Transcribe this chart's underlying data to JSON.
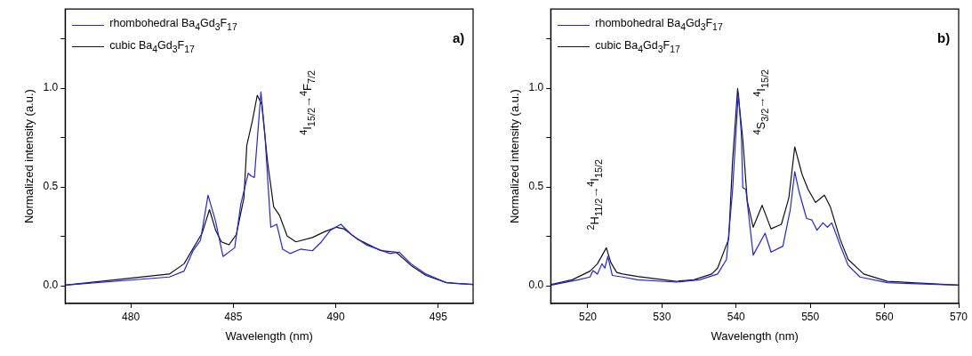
{
  "chart_data": [
    {
      "type": "line",
      "xlabel": "Wavelength (nm)",
      "ylabel": "Normalized intensity (a.u.)",
      "legend": "top left",
      "marker": "none",
      "grid": false,
      "xlim": [
        476.8,
        496.7
      ],
      "xticks": [
        480,
        485,
        490,
        495
      ],
      "ylim": [
        -0.09,
        1.4
      ],
      "yticks": [
        {
          "value": 0,
          "label": "0.0"
        },
        {
          "value": 0.25,
          "label": null
        },
        {
          "value": 0.5,
          "label": "0.5"
        },
        {
          "value": 0.75,
          "label": null
        },
        {
          "value": 1,
          "label": "1.0"
        },
        {
          "value": 1.25,
          "label": null
        }
      ],
      "annotations": [
        "a)",
        "$^{4}$I$_{15/2}$→$^{4}$F$_{7/2}$"
      ],
      "series": [
        {
          "name": "rhombohedral Ba$_{4}$Gd$_{3}$F$_{17}$",
          "color": "#2222ee",
          "x": [
            476.8,
            481.88,
            482.6,
            483.04,
            483.4,
            483.77,
            484.14,
            484.5,
            485.07,
            485.37,
            485.73,
            485.88,
            486.03,
            486.35,
            486.54,
            486.83,
            487.12,
            487.41,
            487.77,
            488.28,
            488.86,
            489.3,
            489.74,
            490.25,
            490.76,
            491.48,
            492.65,
            493.09,
            493.67,
            494.4,
            495.41,
            496.7
          ],
          "values": [
            0.003,
            0.044,
            0.074,
            0.177,
            0.229,
            0.458,
            0.325,
            0.148,
            0.192,
            0.414,
            0.569,
            0.555,
            0.547,
            0.98,
            0.769,
            0.296,
            0.311,
            0.185,
            0.163,
            0.185,
            0.177,
            0.222,
            0.281,
            0.311,
            0.259,
            0.207,
            0.163,
            0.17,
            0.111,
            0.059,
            0.015,
            0.006
          ]
        },
        {
          "name": "cubic Ba$_{4}$Gd$_{3}$F$_{17}$",
          "color": "#111111",
          "x": [
            476.8,
            481.88,
            482.6,
            483.48,
            483.84,
            484.14,
            484.42,
            484.79,
            485.15,
            485.52,
            485.66,
            485.95,
            486.17,
            486.39,
            486.68,
            486.97,
            487.26,
            487.63,
            488.06,
            488.86,
            489.45,
            490.03,
            490.39,
            491.05,
            492.21,
            492.94,
            493.67,
            494.4,
            495.41,
            496.7
          ],
          "values": [
            0.003,
            0.059,
            0.111,
            0.266,
            0.385,
            0.281,
            0.222,
            0.207,
            0.259,
            0.444,
            0.71,
            0.843,
            0.964,
            0.917,
            0.621,
            0.399,
            0.355,
            0.251,
            0.222,
            0.244,
            0.273,
            0.296,
            0.288,
            0.236,
            0.177,
            0.17,
            0.103,
            0.052,
            0.015,
            0.006
          ]
        }
      ]
    },
    {
      "type": "line",
      "xlabel": "Wavelength (nm)",
      "ylabel": "Normalized intensity (a.u.)",
      "legend": "top left",
      "marker": "none",
      "grid": false,
      "xlim": [
        515,
        570
      ],
      "xticks": [
        520,
        530,
        540,
        550,
        560,
        570
      ],
      "ylim": [
        -0.09,
        1.4
      ],
      "yticks": [
        {
          "value": 0,
          "label": "0.0"
        },
        {
          "value": 0.25,
          "label": null
        },
        {
          "value": 0.5,
          "label": "0.5"
        },
        {
          "value": 0.75,
          "label": null
        },
        {
          "value": 1,
          "label": "1.0"
        },
        {
          "value": 1.25,
          "label": null
        }
      ],
      "annotations": [
        "b)",
        "$^{2}$H$_{11/2}$→$^{4}$I$_{15/2}$",
        "$^{4}$S$_{3/2}$→$^{4}$I$_{15/2}$"
      ],
      "series": [
        {
          "name": "rhombohedral Ba$_{4}$Gd$_{3}$F$_{17}$",
          "color": "#2222ee",
          "x": [
            515.1,
            518.7,
            520.3,
            520.7,
            521.3,
            521.9,
            522.3,
            522.7,
            523.3,
            524.7,
            526.7,
            531.9,
            535.1,
            537.5,
            538.7,
            539.5,
            540.3,
            540.7,
            540.9,
            541.3,
            542.3,
            543.9,
            544.7,
            546.3,
            547.3,
            547.9,
            548.5,
            549.5,
            550.2,
            550.9,
            551.7,
            552.3,
            552.9,
            554.0,
            555.1,
            556.7,
            560.4,
            570
          ],
          "values": [
            0.003,
            0.03,
            0.044,
            0.077,
            0.059,
            0.111,
            0.089,
            0.148,
            0.052,
            0.044,
            0.03,
            0.018,
            0.03,
            0.059,
            0.133,
            0.473,
            0.976,
            0.769,
            0.496,
            0.488,
            0.155,
            0.266,
            0.17,
            0.2,
            0.385,
            0.577,
            0.473,
            0.34,
            0.333,
            0.281,
            0.318,
            0.296,
            0.318,
            0.207,
            0.103,
            0.044,
            0.015,
            0.003
          ]
        },
        {
          "name": "cubic Ba$_{4}$Gd$_{3}$F$_{17}$",
          "color": "#111111",
          "x": [
            515.1,
            517.9,
            520.3,
            521.3,
            522.5,
            523.1,
            523.9,
            524.7,
            526.7,
            531.9,
            534.3,
            536.7,
            537.5,
            539.0,
            539.5,
            540.2,
            540.9,
            541.5,
            542.3,
            543.5,
            544.7,
            546.1,
            547.1,
            547.9,
            548.9,
            549.7,
            550.7,
            551.9,
            552.7,
            554.0,
            555.1,
            557.2,
            560.4,
            570
          ],
          "values": [
            0.006,
            0.03,
            0.074,
            0.111,
            0.192,
            0.118,
            0.067,
            0.059,
            0.047,
            0.022,
            0.03,
            0.059,
            0.089,
            0.237,
            0.621,
            0.998,
            0.739,
            0.429,
            0.296,
            0.407,
            0.288,
            0.311,
            0.444,
            0.702,
            0.562,
            0.488,
            0.421,
            0.458,
            0.399,
            0.237,
            0.133,
            0.059,
            0.022,
            0.003
          ]
        }
      ]
    }
  ]
}
